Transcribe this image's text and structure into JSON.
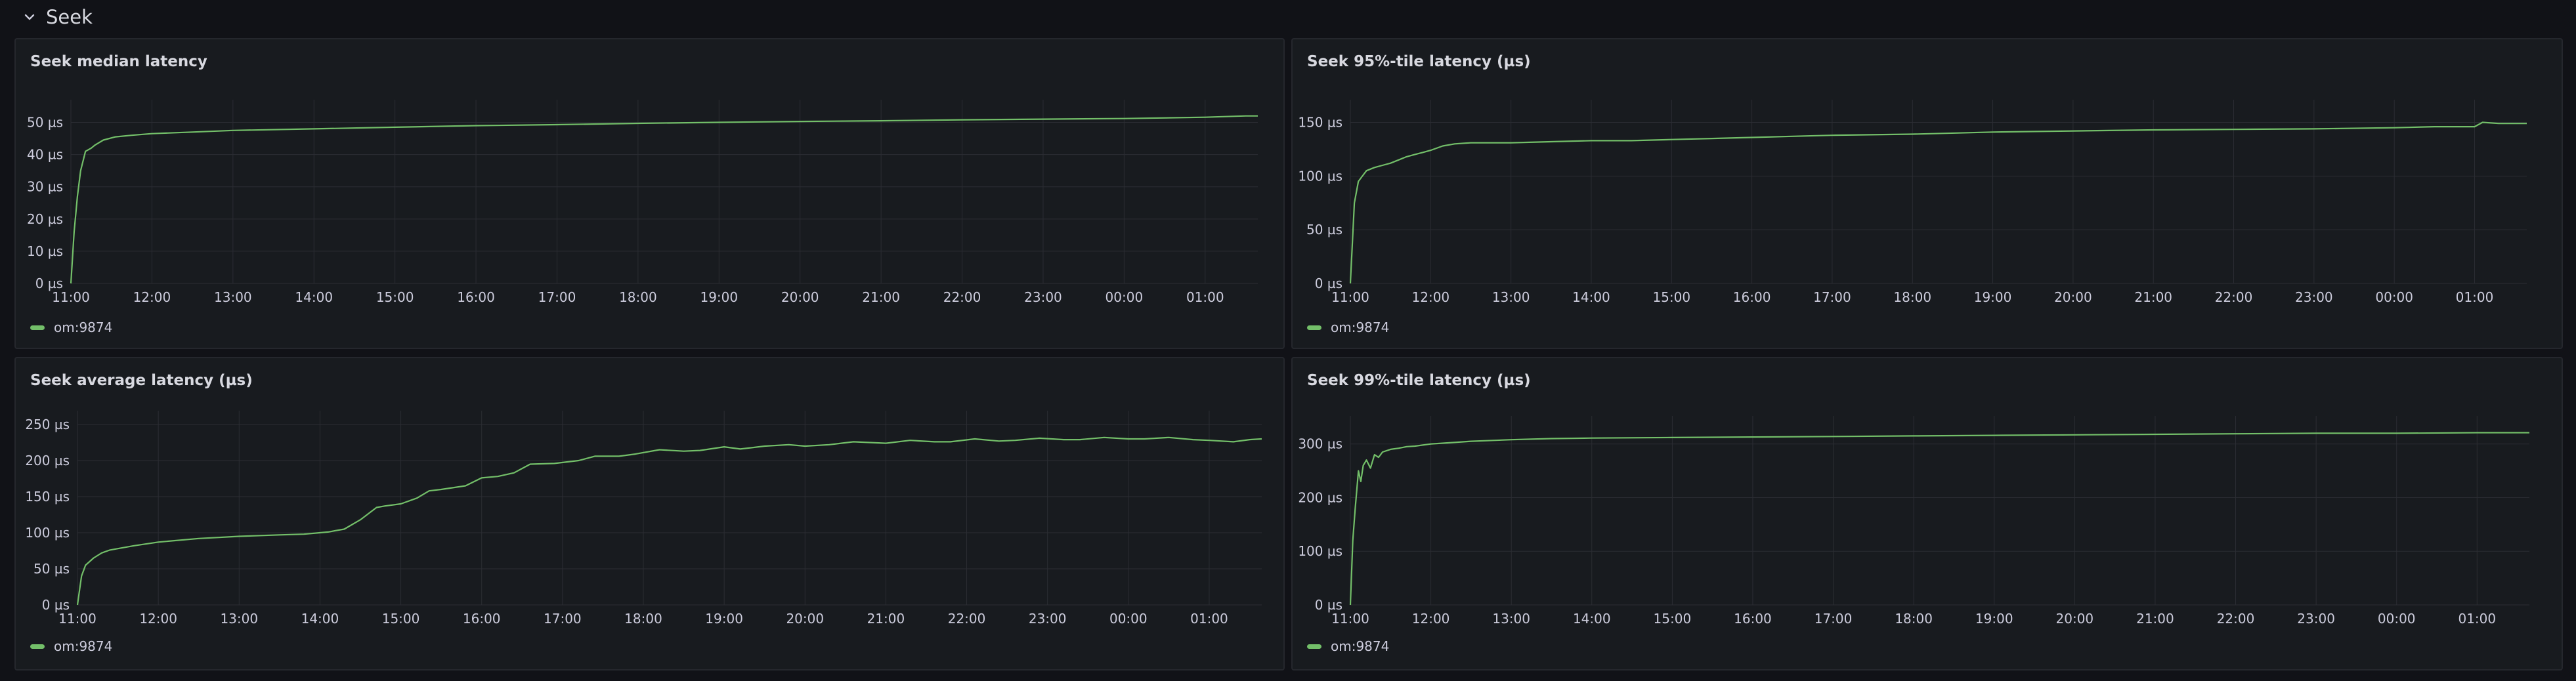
{
  "row": {
    "title": "Seek",
    "chevron_icon": "chevron-down-icon"
  },
  "colors": {
    "background": "#111217",
    "panel": "#181b1f",
    "series": "#73bf69",
    "grid": "#2b2d33",
    "text": "#ccccdc"
  },
  "x_ticks": [
    "11:00",
    "12:00",
    "13:00",
    "14:00",
    "15:00",
    "16:00",
    "17:00",
    "18:00",
    "19:00",
    "20:00",
    "21:00",
    "22:00",
    "23:00",
    "00:00",
    "01:00"
  ],
  "panels": [
    {
      "title": "Seek median latency",
      "legend": "om:9874",
      "chart_data": {
        "type": "line",
        "title": "Seek median latency",
        "xlabel": "",
        "ylabel": "",
        "y_unit": "µs",
        "ylim": [
          0,
          55
        ],
        "y_ticks": [
          0,
          10,
          20,
          30,
          40,
          50
        ],
        "y_tick_labels": [
          "0 µs",
          "10 µs",
          "20 µs",
          "30 µs",
          "40 µs",
          "50 µs"
        ],
        "x_ticks": [
          "11:00",
          "12:00",
          "13:00",
          "14:00",
          "15:00",
          "16:00",
          "17:00",
          "18:00",
          "19:00",
          "20:00",
          "21:00",
          "22:00",
          "23:00",
          "00:00",
          "01:00"
        ],
        "x_hours": [
          0,
          14.65
        ],
        "series": [
          {
            "name": "om:9874",
            "x": [
              0,
              0.04,
              0.08,
              0.12,
              0.18,
              0.25,
              0.3,
              0.4,
              0.55,
              0.75,
              1.0,
              1.5,
              2.0,
              3.0,
              4.0,
              5.0,
              6.0,
              7.0,
              8.0,
              9.0,
              10.0,
              11.0,
              12.0,
              13.0,
              14.0,
              14.5,
              14.65
            ],
            "y": [
              0,
              16,
              27,
              35,
              41,
              42,
              43,
              44.5,
              45.5,
              46,
              46.5,
              47,
              47.5,
              48,
              48.5,
              49,
              49.3,
              49.7,
              50,
              50.3,
              50.5,
              50.8,
              51,
              51.2,
              51.6,
              52,
              52
            ]
          }
        ],
        "grid": true,
        "legend": "bottom-left"
      }
    },
    {
      "title": "Seek 95%-tile latency (µs)",
      "legend": "om:9874",
      "chart_data": {
        "type": "line",
        "title": "Seek 95%-tile latency (µs)",
        "xlabel": "",
        "ylabel": "",
        "y_unit": "µs",
        "ylim": [
          0,
          165
        ],
        "y_ticks": [
          0,
          50,
          100,
          150
        ],
        "y_tick_labels": [
          "0 µs",
          "50 µs",
          "100 µs",
          "150 µs"
        ],
        "x_ticks": [
          "11:00",
          "12:00",
          "13:00",
          "14:00",
          "15:00",
          "16:00",
          "17:00",
          "18:00",
          "19:00",
          "20:00",
          "21:00",
          "22:00",
          "23:00",
          "00:00",
          "01:00"
        ],
        "x_hours": [
          0,
          14.65
        ],
        "series": [
          {
            "name": "om:9874",
            "x": [
              0,
              0.05,
              0.1,
              0.15,
              0.2,
              0.3,
              0.4,
              0.5,
              0.6,
              0.7,
              0.8,
              0.9,
              1.0,
              1.15,
              1.3,
              1.5,
              2.0,
              2.5,
              3.0,
              3.5,
              4.0,
              4.5,
              5.0,
              5.5,
              6.0,
              7.0,
              8.0,
              9.0,
              10.0,
              11.0,
              12.0,
              13.0,
              13.5,
              14.0,
              14.1,
              14.3,
              14.65
            ],
            "y": [
              0,
              75,
              95,
              100,
              105,
              108,
              110,
              112,
              115,
              118,
              120,
              122,
              124,
              128,
              130,
              131,
              131,
              132,
              133,
              133,
              134,
              135,
              136,
              137,
              138,
              139,
              141,
              142,
              143,
              143.5,
              144,
              145,
              146,
              146,
              150,
              149,
              149
            ]
          }
        ],
        "grid": true,
        "legend": "bottom-left"
      }
    },
    {
      "title": "Seek average latency (µs)",
      "legend": "om:9874",
      "chart_data": {
        "type": "line",
        "title": "Seek average latency (µs)",
        "xlabel": "",
        "ylabel": "",
        "y_unit": "µs",
        "ylim": [
          0,
          260
        ],
        "y_ticks": [
          0,
          50,
          100,
          150,
          200,
          250
        ],
        "y_tick_labels": [
          "0 µs",
          "50 µs",
          "100 µs",
          "150 µs",
          "200 µs",
          "250 µs"
        ],
        "x_ticks": [
          "11:00",
          "12:00",
          "13:00",
          "14:00",
          "15:00",
          "16:00",
          "17:00",
          "18:00",
          "19:00",
          "20:00",
          "21:00",
          "22:00",
          "23:00",
          "00:00",
          "01:00"
        ],
        "x_hours": [
          0,
          14.65
        ],
        "series": [
          {
            "name": "om:9874",
            "x": [
              0,
              0.05,
              0.1,
              0.2,
              0.3,
              0.4,
              0.5,
              0.7,
              1.0,
              1.5,
              2.0,
              2.5,
              2.8,
              3.0,
              3.1,
              3.3,
              3.5,
              3.7,
              3.8,
              4.0,
              4.2,
              4.35,
              4.5,
              4.8,
              5.0,
              5.2,
              5.4,
              5.6,
              5.9,
              6.2,
              6.4,
              6.7,
              6.9,
              7.2,
              7.5,
              7.7,
              8.0,
              8.2,
              8.5,
              8.8,
              9.0,
              9.3,
              9.6,
              9.8,
              10.0,
              10.3,
              10.6,
              10.8,
              11.1,
              11.4,
              11.6,
              11.9,
              12.2,
              12.4,
              12.7,
              13.0,
              13.2,
              13.5,
              13.8,
              14.0,
              14.3,
              14.5,
              14.65
            ],
            "y": [
              0,
              40,
              55,
              65,
              72,
              76,
              78,
              82,
              87,
              92,
              95,
              97,
              98,
              100,
              101,
              105,
              118,
              135,
              137,
              140,
              148,
              158,
              160,
              165,
              176,
              178,
              183,
              195,
              196,
              200,
              206,
              206,
              209,
              215,
              213,
              214,
              219,
              216,
              220,
              222,
              220,
              222,
              226,
              225,
              224,
              228,
              226,
              226,
              230,
              227,
              228,
              231,
              229,
              229,
              232,
              230,
              230,
              232,
              229,
              228,
              226,
              229,
              230
            ]
          }
        ],
        "grid": true,
        "legend": "bottom-left"
      }
    },
    {
      "title": "Seek 99%-tile latency (µs)",
      "legend": "om:9874",
      "chart_data": {
        "type": "line",
        "title": "Seek 99%-tile latency (µs)",
        "xlabel": "",
        "ylabel": "",
        "y_unit": "µs",
        "ylim": [
          0,
          340
        ],
        "y_ticks": [
          0,
          100,
          200,
          300
        ],
        "y_tick_labels": [
          "0 µs",
          "100 µs",
          "200 µs",
          "300 µs"
        ],
        "x_ticks": [
          "11:00",
          "12:00",
          "13:00",
          "14:00",
          "15:00",
          "16:00",
          "17:00",
          "18:00",
          "19:00",
          "20:00",
          "21:00",
          "22:00",
          "23:00",
          "00:00",
          "01:00"
        ],
        "x_hours": [
          0,
          14.65
        ],
        "series": [
          {
            "name": "om:9874",
            "x": [
              0,
              0.03,
              0.06,
              0.1,
              0.13,
              0.16,
              0.2,
              0.25,
              0.3,
              0.35,
              0.4,
              0.5,
              0.6,
              0.7,
              0.8,
              1.0,
              1.2,
              1.5,
              2.0,
              2.5,
              3.0,
              4.0,
              5.0,
              6.0,
              7.0,
              8.0,
              9.0,
              10.0,
              11.0,
              12.0,
              13.0,
              14.0,
              14.65
            ],
            "y": [
              0,
              120,
              180,
              250,
              230,
              260,
              270,
              255,
              280,
              275,
              285,
              290,
              292,
              295,
              296,
              300,
              302,
              305,
              308,
              310,
              311,
              312,
              313,
              314,
              315,
              316,
              317,
              318,
              319,
              320,
              320,
              321,
              321
            ]
          }
        ],
        "grid": true,
        "legend": "bottom-left"
      }
    }
  ]
}
